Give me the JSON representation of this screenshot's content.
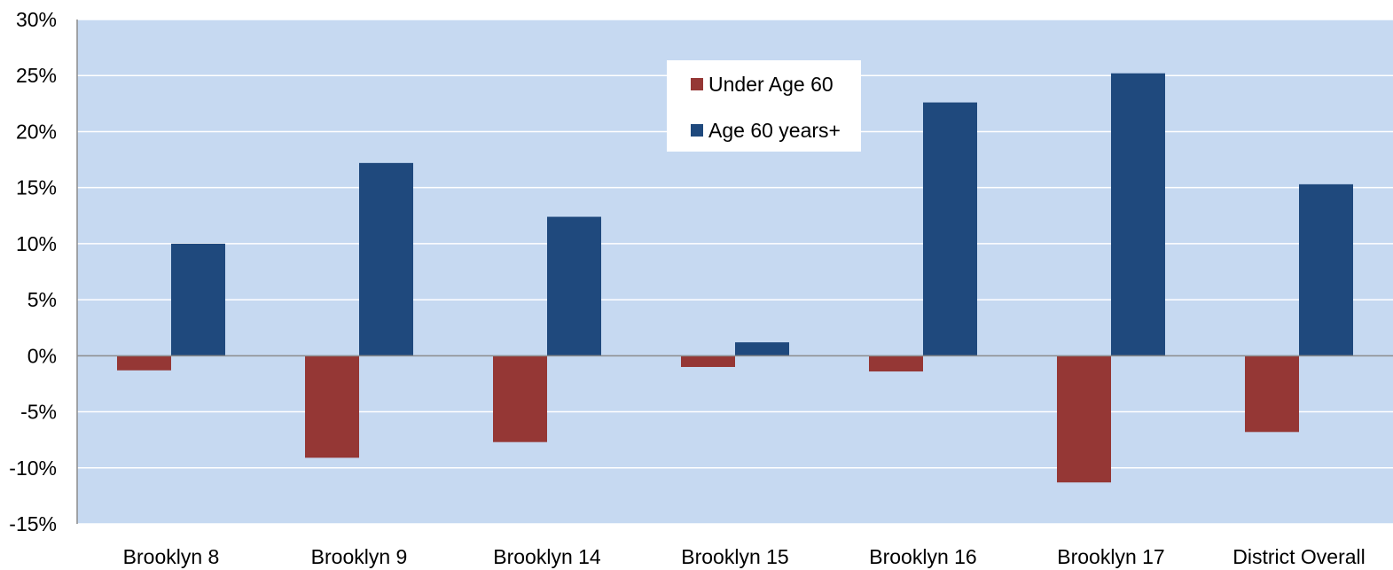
{
  "chart_data": {
    "type": "bar",
    "categories": [
      "Brooklyn 8",
      "Brooklyn 9",
      "Brooklyn 14",
      "Brooklyn 15",
      "Brooklyn 16",
      "Brooklyn 17",
      "District Overall"
    ],
    "series": [
      {
        "name": "Under Age 60",
        "color": "#953735",
        "values": [
          -1.3,
          -9.1,
          -7.7,
          -1.0,
          -1.4,
          -11.3,
          -6.8
        ]
      },
      {
        "name": "Age 60 years+",
        "color": "#1f497d",
        "values": [
          10.0,
          17.2,
          12.4,
          1.2,
          22.6,
          25.2,
          15.3
        ]
      }
    ],
    "y_ticks": [
      "30%",
      "25%",
      "20%",
      "15%",
      "10%",
      "5%",
      "0%",
      "-5%",
      "-10%",
      "-15%"
    ],
    "ylim": [
      -15,
      30
    ],
    "y_step": 5,
    "grid": true,
    "legend_position": "top-center",
    "plot_background": "#c6d9f1"
  }
}
